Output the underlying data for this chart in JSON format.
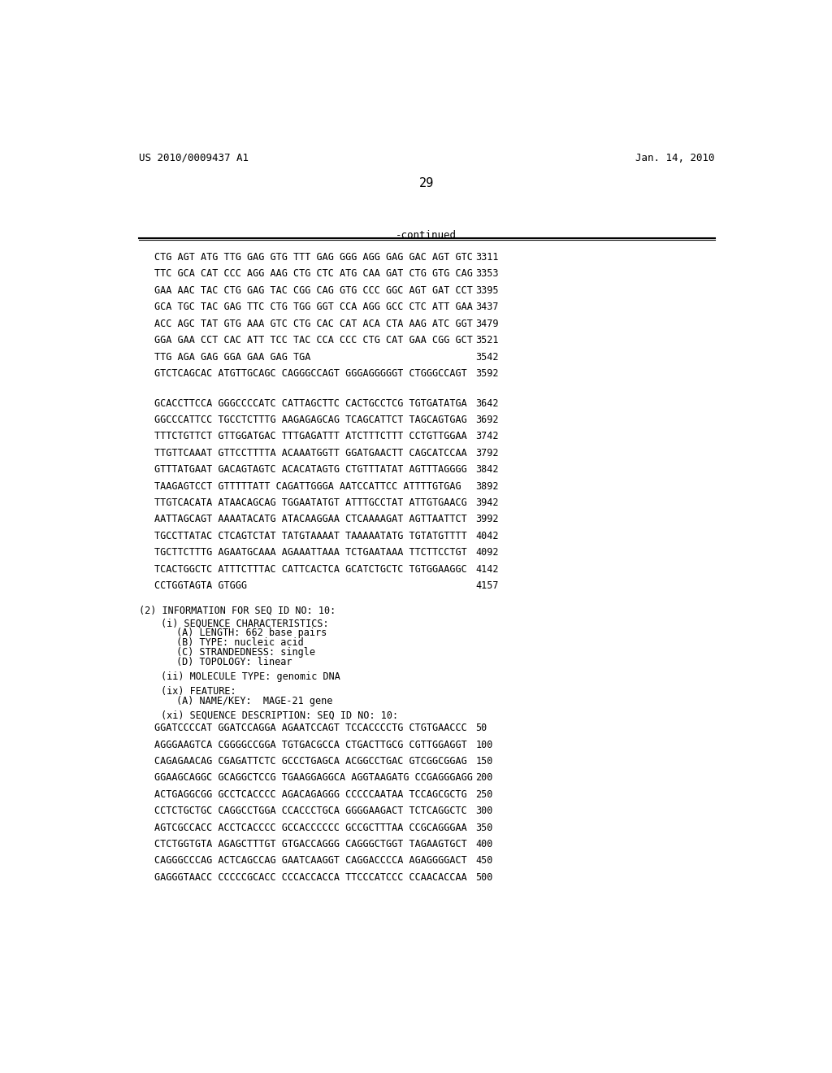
{
  "header_left": "US 2010/0009437 A1",
  "header_right": "Jan. 14, 2010",
  "page_number": "29",
  "continued_label": "-continued",
  "bg_color": "#ffffff",
  "text_color": "#000000",
  "sequence_lines_top": [
    {
      "seq": "CTG AGT ATG TTG GAG GTG TTT GAG GGG AGG GAG GAC AGT GTC",
      "num": "3311"
    },
    {
      "seq": "TTC GCA CAT CCC AGG AAG CTG CTC ATG CAA GAT CTG GTG CAG",
      "num": "3353"
    },
    {
      "seq": "GAA AAC TAC CTG GAG TAC CGG CAG GTG CCC GGC AGT GAT CCT",
      "num": "3395"
    },
    {
      "seq": "GCA TGC TAC GAG TTC CTG TGG GGT CCA AGG GCC CTC ATT GAA",
      "num": "3437"
    },
    {
      "seq": "ACC AGC TAT GTG AAA GTC CTG CAC CAT ACA CTA AAG ATC GGT",
      "num": "3479"
    },
    {
      "seq": "GGA GAA CCT CAC ATT TCC TAC CCA CCC CTG CAT GAA CGG GCT",
      "num": "3521"
    },
    {
      "seq": "TTG AGA GAG GGA GAA GAG TGA",
      "num": "3542"
    },
    {
      "seq": "GTCTCAGCAC ATGTTGCAGC CAGGGCCAGT GGGAGGGGGT CTGGGCCAGT",
      "num": "3592"
    }
  ],
  "sequence_lines_mid": [
    {
      "seq": "GCACCTTCCA GGGCCCCATC CATTAGCTTC CACTGCCTCG TGTGATATGA",
      "num": "3642"
    },
    {
      "seq": "GGCCCATTCC TGCCTCTTTG AAGAGAGCAG TCAGCATTCT TAGCAGTGAG",
      "num": "3692"
    },
    {
      "seq": "TTTCTGTTCT GTTGGATGAC TTTGAGATTT ATCTTTCTTT CCTGTTGGAA",
      "num": "3742"
    },
    {
      "seq": "TTGTTCAAAT GTTCCTTTTA ACAAATGGTT GGATGAACTT CAGCATCCAA",
      "num": "3792"
    },
    {
      "seq": "GTTTATGAAT GACAGTAGTC ACACATAGTG CTGTTTATAT AGTTTAGGGG",
      "num": "3842"
    },
    {
      "seq": "TAAGAGTCCT GTTTTTATT CAGATTGGGA AATCCATTCC ATTTTGTGAG",
      "num": "3892"
    },
    {
      "seq": "TTGTCACATA ATAACAGCAG TGGAATATGT ATTTGCCTAT ATTGTGAACG",
      "num": "3942"
    },
    {
      "seq": "AATTAGCAGT AAAATACATG ATACAAGGAA CTCAAAAGAT AGTTAATTCT",
      "num": "3992"
    },
    {
      "seq": "TGCCTTATAC CTCAGTCTAT TATGTAAAAT TAAAAATATG TGTATGTTTT",
      "num": "4042"
    },
    {
      "seq": "TGCTTCTTTG AGAATGCAAA AGAAATTAAA TCTGAATAAA TTCTTCCTGT",
      "num": "4092"
    },
    {
      "seq": "TCACTGGCTC ATTTCTTTAC CATTCACTCA GCATCTGCTC TGTGGAAGGC",
      "num": "4142"
    },
    {
      "seq": "CCTGGTAGTA GTGGG",
      "num": "4157"
    }
  ],
  "info_section": [
    {
      "text": "(2) INFORMATION FOR SEQ ID NO: 10:",
      "indent": 0
    },
    {
      "text": "(i) SEQUENCE CHARACTERISTICS:",
      "indent": 1
    },
    {
      "text": "(A) LENGTH: 662 base pairs",
      "indent": 2
    },
    {
      "text": "(B) TYPE: nucleic acid",
      "indent": 2
    },
    {
      "text": "(C) STRANDEDNESS: single",
      "indent": 2
    },
    {
      "text": "(D) TOPOLOGY: linear",
      "indent": 2
    },
    {
      "text": "(ii) MOLECULE TYPE: genomic DNA",
      "indent": 1
    },
    {
      "text": "(ix) FEATURE:",
      "indent": 1
    },
    {
      "text": "(A) NAME/KEY:  MAGE-21 gene",
      "indent": 2
    },
    {
      "text": "(xi) SEQUENCE DESCRIPTION: SEQ ID NO: 10:",
      "indent": 1
    }
  ],
  "bottom_seq_lines": [
    {
      "seq": "GGATCCCCAT GGATCCAGGA AGAATCCAGT TCCACCCCTG CTGTGAACCC",
      "num": "50"
    },
    {
      "seq": "AGGGAAGTCA CGGGGCCGGA TGTGACGCCA CTGACTTGCG CGTTGGAGGT",
      "num": "100"
    },
    {
      "seq": "CAGAGAACAG CGAGATTCTC GCCCTGAGCA ACGGCCTGAC GTCGGCGGAG",
      "num": "150"
    },
    {
      "seq": "GGAAGCAGGC GCAGGCTCCG TGAAGGAGGCA AGGTAAGATG CCGAGGGAGG",
      "num": "200"
    },
    {
      "seq": "ACTGAGGCGG GCCTCACCCC AGACAGAGGG CCCCCAATAA TCCAGCGCTG",
      "num": "250"
    },
    {
      "seq": "CCTCTGCTGC CAGGCCTGGA CCACCCTGCA GGGGAAGACT TCTCAGGCTC",
      "num": "300"
    },
    {
      "seq": "AGTCGCCACC ACCTCACCCC GCCACCCCCC GCCGCTTTAA CCGCAGGGAA",
      "num": "350"
    },
    {
      "seq": "CTCTGGTGTA AGAGCTTTGT GTGACCAGGG CAGGGCTGGT TAGAAGTGCT",
      "num": "400"
    },
    {
      "seq": "CAGGGCCCAG ACTCAGCCAG GAATCAAGGT CAGGACCCCA AGAGGGGACT",
      "num": "450"
    },
    {
      "seq": "GAGGGTAACC CCCCCGCACC CCCACCACCA TTCCCATCCC CCAACACCAA",
      "num": "500"
    }
  ]
}
